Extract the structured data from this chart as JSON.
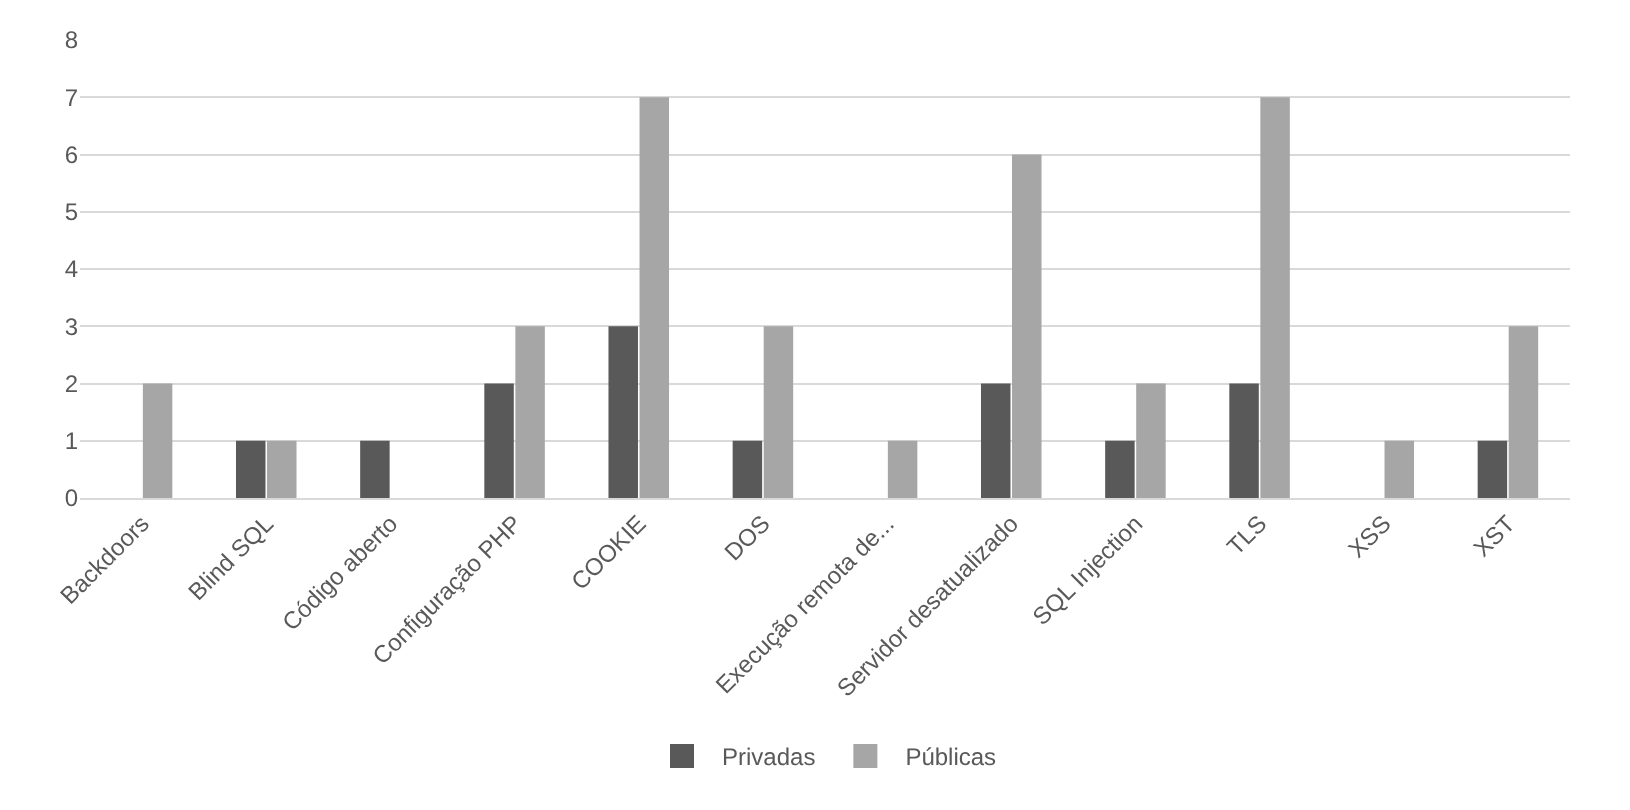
{
  "chart_data": {
    "type": "bar",
    "categories": [
      "Backdoors",
      "Blind SQL",
      "Código aberto",
      "Configuração PHP",
      "COOKIE",
      "DOS",
      "Execução remota de...",
      "Servidor desatualizado",
      "SQL Injection",
      "TLS",
      "XSS",
      "XST"
    ],
    "series": [
      {
        "name": "Privadas",
        "color": "#595959",
        "values": [
          0,
          1,
          1,
          2,
          3,
          1,
          0,
          2,
          1,
          2,
          0,
          1
        ]
      },
      {
        "name": "Públicas",
        "color": "#a6a6a6",
        "values": [
          2,
          1,
          0,
          3,
          7,
          3,
          1,
          6,
          2,
          7,
          1,
          3
        ]
      }
    ],
    "ylim": [
      0,
      8
    ],
    "yticks": [
      0,
      1,
      2,
      3,
      4,
      5,
      6,
      7,
      8
    ],
    "grid": "y",
    "legend": "bottom"
  }
}
